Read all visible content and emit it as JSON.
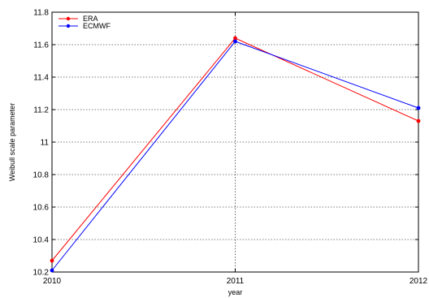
{
  "chart_data": {
    "type": "line",
    "title": "",
    "xlabel": "year",
    "ylabel": "Weibull scale parameter",
    "categories": [
      "2010",
      "2011",
      "2012"
    ],
    "x": [
      2010,
      2011,
      2012
    ],
    "xlim": [
      2010,
      2012
    ],
    "ylim": [
      10.2,
      11.8
    ],
    "yticks": [
      "10.2",
      "10.4",
      "10.6",
      "10.8",
      "11",
      "11.2",
      "11.4",
      "11.6",
      "11.8"
    ],
    "grid": true,
    "legend_position": "top-left",
    "series": [
      {
        "name": "ERA",
        "color": "#ff0000",
        "values": [
          10.27,
          11.64,
          11.13
        ]
      },
      {
        "name": "ECMWF",
        "color": "#0000ff",
        "values": [
          10.21,
          11.62,
          11.21
        ]
      }
    ]
  }
}
